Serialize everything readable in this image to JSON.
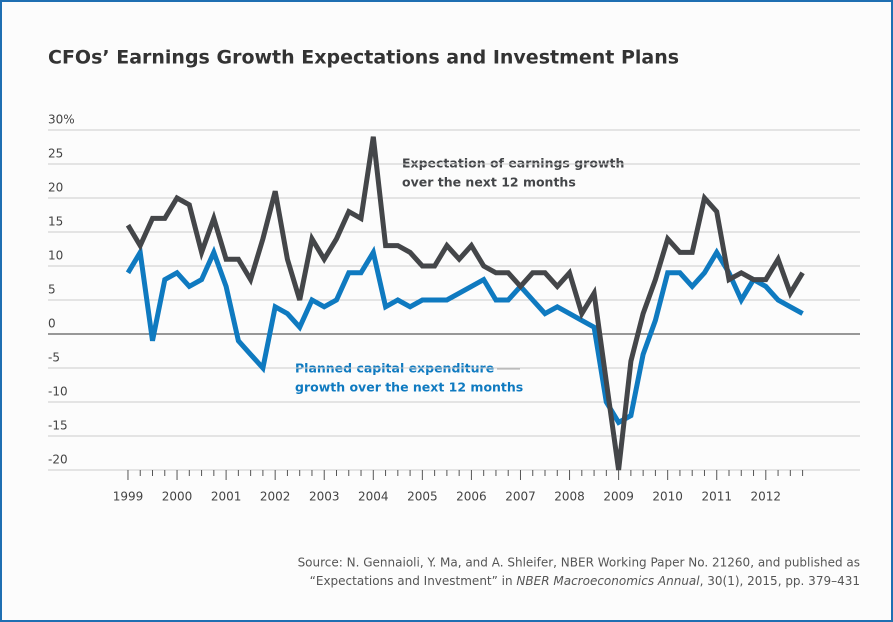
{
  "chart_data": {
    "type": "line",
    "title": "CFOs’ Earnings Growth Expectations and Investment Plans",
    "x": [
      1999,
      1999.25,
      1999.5,
      1999.75,
      2000,
      2000.25,
      2000.5,
      2000.75,
      2001,
      2001.25,
      2001.5,
      2001.75,
      2002,
      2002.25,
      2002.5,
      2002.75,
      2003,
      2003.25,
      2003.5,
      2003.75,
      2004,
      2004.25,
      2004.5,
      2004.75,
      2005,
      2005.25,
      2005.5,
      2005.75,
      2006,
      2006.25,
      2006.5,
      2006.75,
      2007,
      2007.25,
      2007.5,
      2007.75,
      2008,
      2008.25,
      2008.5,
      2008.75,
      2009,
      2009.25,
      2009.5,
      2009.75,
      2010,
      2010.25,
      2010.5,
      2010.75,
      2011,
      2011.25,
      2011.5,
      2011.75,
      2012,
      2012.25,
      2012.5,
      2012.75
    ],
    "series": [
      {
        "name": [
          "Expectation of earnings growth",
          "over the next 12 months"
        ],
        "color": "#444649",
        "values": [
          16,
          13,
          17,
          17,
          20,
          19,
          12,
          17,
          11,
          11,
          8,
          14,
          21,
          11,
          5,
          14,
          11,
          14,
          18,
          17,
          29,
          13,
          13,
          12,
          10,
          10,
          13,
          11,
          13,
          10,
          9,
          9,
          7,
          9,
          9,
          7,
          9,
          3,
          6,
          -7,
          -20,
          -4,
          3,
          8,
          14,
          12,
          12,
          20,
          18,
          8,
          9,
          8,
          8,
          11,
          6,
          9
        ]
      },
      {
        "name": [
          "Planned capital expenditure",
          "growth over the next 12 months"
        ],
        "color": "#0f7ac0",
        "values": [
          9,
          12,
          -1,
          8,
          9,
          7,
          8,
          12,
          7,
          -1,
          -3,
          -5,
          4,
          3,
          1,
          5,
          4,
          5,
          9,
          9,
          12,
          4,
          5,
          4,
          5,
          5,
          5,
          6,
          7,
          8,
          5,
          5,
          7,
          5,
          3,
          4,
          3,
          2,
          1,
          -10,
          -13,
          -12,
          -3,
          2,
          9,
          9,
          7,
          9,
          12,
          9,
          5,
          8,
          7,
          5,
          4,
          3
        ]
      }
    ],
    "xlim": [
      1997.37,
      2013.92
    ],
    "xticks": [
      1999,
      2000,
      2001,
      2002,
      2003,
      2004,
      2005,
      2006,
      2007,
      2008,
      2009,
      2010,
      2011,
      2012
    ],
    "ylim": [
      -20,
      30
    ],
    "yticks": [
      -20,
      -15,
      -10,
      -5,
      0,
      5,
      10,
      15,
      20,
      25,
      {
        "value": 30,
        "label": "30%"
      }
    ],
    "grid": true,
    "source": {
      "line1": "Source: N. Gennaioli, Y. Ma, and A. Shleifer, NBER Working Paper No. 21260, and published as",
      "line2_pre": "“Expectations and Investment” in ",
      "line2_italic": "NBER Macroeconomics Annual",
      "line2_post": ", 30(1), 2015, pp. 379–431"
    }
  }
}
